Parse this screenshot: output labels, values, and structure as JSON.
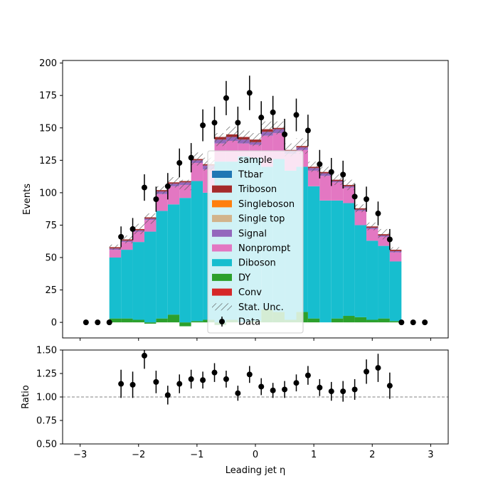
{
  "chart_data": [
    {
      "type": "bar",
      "stacked": true,
      "xlabel": "",
      "ylabel": "Events",
      "xlim": [
        -3.3,
        3.3
      ],
      "ylim": [
        -12,
        202
      ],
      "yticks": [
        "0",
        "25",
        "50",
        "75",
        "100",
        "125",
        "150",
        "175",
        "200"
      ],
      "ytick_values": [
        0,
        25,
        50,
        75,
        100,
        125,
        150,
        175,
        200
      ],
      "bin_edges": [
        -2.5,
        -2.3,
        -2.1,
        -1.9,
        -1.7,
        -1.5,
        -1.3,
        -1.1,
        -0.9,
        -0.7,
        -0.5,
        -0.3,
        -0.1,
        0.1,
        0.3,
        0.5,
        0.7,
        0.9,
        1.1,
        1.3,
        1.5,
        1.7,
        1.9,
        2.1,
        2.3,
        2.5
      ],
      "series": [
        {
          "name": "DY",
          "color": "#2ca02c",
          "values": [
            3,
            3,
            2,
            -1,
            3,
            6,
            -3,
            1,
            2,
            -2,
            2,
            0,
            1,
            10,
            8,
            2,
            8,
            3,
            0,
            3,
            5,
            4,
            2,
            3,
            1
          ]
        },
        {
          "name": "Diboson",
          "color": "#17becf",
          "values": [
            47,
            53,
            60,
            70,
            83,
            85,
            96,
            108,
            98,
            124,
            122,
            128,
            126,
            110,
            118,
            115,
            112,
            102,
            94,
            91,
            87,
            71,
            61,
            56,
            46
          ]
        },
        {
          "name": "Nonprompt",
          "color": "#e377c2",
          "values": [
            6,
            6,
            8,
            9,
            13,
            14,
            10,
            14,
            18,
            14,
            16,
            10,
            10,
            24,
            20,
            13,
            13,
            12,
            19,
            14,
            12,
            11,
            9,
            7,
            7
          ]
        },
        {
          "name": "Signal",
          "color": "#9467bd",
          "values": [
            1,
            1,
            1,
            1,
            2,
            2,
            2,
            2,
            3,
            3,
            3,
            3,
            2,
            3,
            3,
            2,
            2,
            2,
            2,
            1,
            1,
            1,
            1,
            1,
            1
          ]
        },
        {
          "name": "Single top",
          "color": "#d2b48c",
          "values": [
            0,
            0,
            0,
            0,
            0,
            0,
            0,
            0,
            0,
            0,
            0,
            0,
            0,
            0,
            0,
            0,
            0,
            0,
            0,
            0,
            0,
            0,
            0,
            0,
            0
          ]
        },
        {
          "name": "Singleboson",
          "color": "#ff7f0e",
          "values": [
            0,
            0,
            0,
            0,
            0,
            0,
            0,
            0,
            0,
            0,
            0,
            0,
            0,
            0,
            0,
            0,
            0,
            0,
            0,
            0,
            0,
            0,
            0,
            0,
            0
          ]
        },
        {
          "name": "Triboson",
          "color": "#a52a2a",
          "values": [
            1,
            1,
            1,
            1,
            1,
            1,
            1,
            1,
            1,
            2,
            2,
            2,
            2,
            2,
            1,
            1,
            1,
            1,
            1,
            1,
            1,
            1,
            1,
            1,
            1
          ]
        },
        {
          "name": "Ttbar",
          "color": "#1f77b4",
          "values": [
            0,
            0,
            0,
            0,
            0,
            0,
            0,
            0,
            0,
            0,
            0,
            0,
            0,
            0,
            0,
            0,
            0,
            0,
            0,
            0,
            0,
            0,
            0,
            0,
            0
          ]
        },
        {
          "name": "Conv",
          "color": "#d62728",
          "values": [
            0,
            0,
            0,
            0,
            0,
            0,
            0,
            0,
            0,
            0,
            0,
            0,
            0,
            0,
            0,
            0,
            0,
            0,
            0,
            0,
            0,
            0,
            0,
            0,
            0
          ]
        }
      ],
      "stat_unc": [
        2,
        3,
        4,
        4,
        3,
        4,
        4,
        5,
        5,
        5,
        6,
        5,
        5,
        6,
        5,
        5,
        6,
        4,
        4,
        4,
        4,
        3,
        3,
        4,
        2
      ],
      "data_points": {
        "name": "Data",
        "x": [
          -2.9,
          -2.7,
          -2.5,
          -2.3,
          -2.1,
          -1.9,
          -1.7,
          -1.5,
          -1.3,
          -1.1,
          -0.9,
          -0.7,
          -0.5,
          -0.3,
          -0.1,
          0.1,
          0.3,
          0.5,
          0.7,
          0.9,
          1.1,
          1.3,
          1.5,
          1.7,
          1.9,
          2.1,
          2.3,
          2.5,
          2.7,
          2.9
        ],
        "y": [
          0,
          0,
          0,
          66,
          72,
          104,
          95,
          105,
          123,
          127,
          152,
          154,
          173,
          154,
          177,
          158,
          162,
          145,
          160,
          148,
          122,
          116,
          114,
          97,
          95,
          84,
          64,
          0,
          0,
          0
        ],
        "yerr": [
          0,
          0,
          0,
          8,
          8.5,
          10.2,
          9.7,
          10.2,
          11.1,
          11.3,
          12.3,
          12.4,
          13.2,
          12.4,
          13.3,
          12.6,
          12.7,
          12,
          12.6,
          12.2,
          11,
          10.8,
          10.7,
          9.8,
          9.7,
          9.2,
          8,
          0,
          0,
          0
        ]
      },
      "legend": {
        "title": "sample",
        "placement": "center",
        "entries": [
          "Ttbar",
          "Triboson",
          "Singleboson",
          "Single top",
          "Signal",
          "Nonprompt",
          "Diboson",
          "DY",
          "Conv",
          "Stat. Unc.",
          "Data"
        ]
      }
    },
    {
      "type": "scatter",
      "xlabel": "Leading jet  η",
      "ylabel": "Ratio",
      "xlim": [
        -3.3,
        3.3
      ],
      "ylim": [
        0.5,
        1.5
      ],
      "xticks": [
        "−3",
        "−2",
        "−1",
        "0",
        "1",
        "2",
        "3"
      ],
      "xtick_values": [
        -3,
        -2,
        -1,
        0,
        1,
        2,
        3
      ],
      "yticks": [
        "0.50",
        "0.75",
        "1.00",
        "1.25",
        "1.50"
      ],
      "ytick_values": [
        0.5,
        0.75,
        1.0,
        1.25,
        1.5
      ],
      "reference_line": 1.0,
      "x": [
        -2.3,
        -2.1,
        -1.9,
        -1.7,
        -1.5,
        -1.3,
        -1.1,
        -0.9,
        -0.7,
        -0.5,
        -0.3,
        -0.1,
        0.1,
        0.3,
        0.5,
        0.7,
        0.9,
        1.1,
        1.3,
        1.5,
        1.7,
        1.9,
        2.1,
        2.3
      ],
      "y": [
        1.14,
        1.13,
        1.44,
        1.16,
        1.02,
        1.14,
        1.19,
        1.18,
        1.26,
        1.19,
        1.04,
        1.24,
        1.11,
        1.07,
        1.08,
        1.15,
        1.23,
        1.1,
        1.06,
        1.06,
        1.08,
        1.27,
        1.31,
        1.12
      ],
      "yerr": [
        0.15,
        0.14,
        0.14,
        0.12,
        0.1,
        0.1,
        0.1,
        0.09,
        0.1,
        0.09,
        0.08,
        0.09,
        0.09,
        0.08,
        0.09,
        0.09,
        0.1,
        0.09,
        0.1,
        0.11,
        0.11,
        0.13,
        0.15,
        0.14
      ]
    }
  ]
}
